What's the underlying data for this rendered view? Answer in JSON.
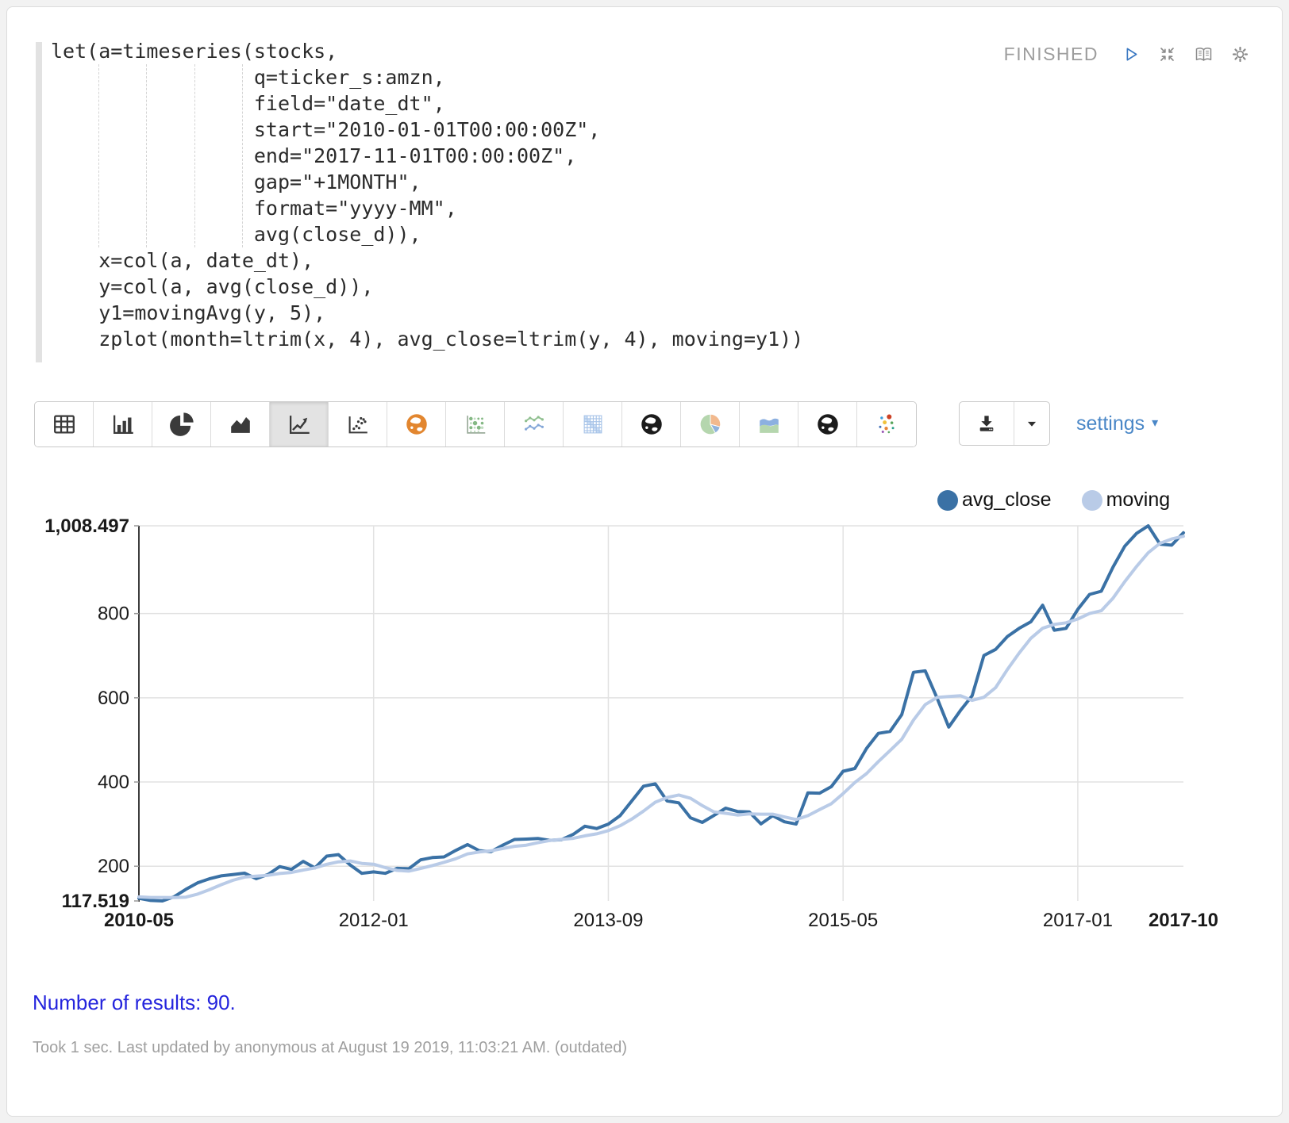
{
  "paragraph": {
    "status": "FINISHED",
    "status_icons": [
      "play-icon",
      "collapse-icon",
      "book-icon",
      "gear-icon"
    ],
    "code_lines": [
      "let(a=timeseries(stocks,",
      "                 q=ticker_s:amzn,",
      "                 field=\"date_dt\",",
      "                 start=\"2010-01-01T00:00:00Z\",",
      "                 end=\"2017-11-01T00:00:00Z\",",
      "                 gap=\"+1MONTH\",",
      "                 format=\"yyyy-MM\",",
      "                 avg(close_d)),",
      "    x=col(a, date_dt),",
      "    y=col(a, avg(close_d)),",
      "    y1=movingAvg(y, 5),",
      "    zplot(month=ltrim(x, 4), avg_close=ltrim(y, 4), moving=y1))"
    ]
  },
  "toolbar": {
    "chart_types": [
      {
        "name": "table",
        "icon": "table-icon",
        "selected": false
      },
      {
        "name": "bar-chart",
        "icon": "bar-chart-icon",
        "selected": false
      },
      {
        "name": "pie-chart",
        "icon": "pie-chart-icon",
        "selected": false
      },
      {
        "name": "area-chart",
        "icon": "area-chart-icon",
        "selected": false
      },
      {
        "name": "line-chart",
        "icon": "line-chart-icon",
        "selected": true
      },
      {
        "name": "scatter-chart",
        "icon": "scatter-chart-icon",
        "selected": false
      },
      {
        "name": "map-orange",
        "icon": "globe-orange-icon",
        "selected": false
      },
      {
        "name": "bubble-matrix",
        "icon": "bubble-matrix-icon",
        "selected": false
      },
      {
        "name": "multi-line",
        "icon": "multi-line-icon",
        "selected": false
      },
      {
        "name": "heatmap",
        "icon": "heatmap-icon",
        "selected": false
      },
      {
        "name": "globe-dark",
        "icon": "globe-dark-icon",
        "selected": false
      },
      {
        "name": "pie-pastel",
        "icon": "pie-pastel-icon",
        "selected": false
      },
      {
        "name": "area-pastel",
        "icon": "area-pastel-icon",
        "selected": false
      },
      {
        "name": "globe-dark-2",
        "icon": "globe-dark-icon",
        "selected": false
      },
      {
        "name": "scatter-color",
        "icon": "scatter-color-icon",
        "selected": false
      }
    ],
    "download_buttons": [
      {
        "name": "download",
        "icon": "download-icon"
      },
      {
        "name": "download-options",
        "icon": "caret-down-icon"
      }
    ],
    "settings_label": "settings",
    "settings_caret": "▾"
  },
  "chart_data": {
    "type": "line",
    "x_field": "month",
    "ylim": [
      117.519,
      1008.497
    ],
    "legend_position": "top-right",
    "grid": true,
    "y_ticks": [
      {
        "label": "1,008.497",
        "value": 1008.497,
        "bold": true,
        "grid": true
      },
      {
        "label": "800",
        "value": 800,
        "bold": false,
        "grid": true
      },
      {
        "label": "600",
        "value": 600,
        "bold": false,
        "grid": true
      },
      {
        "label": "400",
        "value": 400,
        "bold": false,
        "grid": true
      },
      {
        "label": "200",
        "value": 200,
        "bold": false,
        "grid": true
      },
      {
        "label": "117.519",
        "value": 117.519,
        "bold": true,
        "grid": false
      }
    ],
    "x_ticks": [
      {
        "label": "2010-05",
        "index": 0,
        "bold": true,
        "grid": false
      },
      {
        "label": "2012-01",
        "index": 20,
        "bold": false,
        "grid": true
      },
      {
        "label": "2013-09",
        "index": 40,
        "bold": false,
        "grid": true
      },
      {
        "label": "2015-05",
        "index": 60,
        "bold": false,
        "grid": true
      },
      {
        "label": "2017-01",
        "index": 80,
        "bold": false,
        "grid": true
      },
      {
        "label": "2017-10",
        "index": 89,
        "bold": true,
        "grid": false
      }
    ],
    "categories": [
      "2010-05",
      "2010-06",
      "2010-07",
      "2010-08",
      "2010-09",
      "2010-10",
      "2010-11",
      "2010-12",
      "2011-01",
      "2011-02",
      "2011-03",
      "2011-04",
      "2011-05",
      "2011-06",
      "2011-07",
      "2011-08",
      "2011-09",
      "2011-10",
      "2011-11",
      "2011-12",
      "2012-01",
      "2012-02",
      "2012-03",
      "2012-04",
      "2012-05",
      "2012-06",
      "2012-07",
      "2012-08",
      "2012-09",
      "2012-10",
      "2012-11",
      "2012-12",
      "2013-01",
      "2013-02",
      "2013-03",
      "2013-04",
      "2013-05",
      "2013-06",
      "2013-07",
      "2013-08",
      "2013-09",
      "2013-10",
      "2013-11",
      "2013-12",
      "2014-01",
      "2014-02",
      "2014-03",
      "2014-04",
      "2014-05",
      "2014-06",
      "2014-07",
      "2014-08",
      "2014-09",
      "2014-10",
      "2014-11",
      "2014-12",
      "2015-01",
      "2015-02",
      "2015-03",
      "2015-04",
      "2015-05",
      "2015-06",
      "2015-07",
      "2015-08",
      "2015-09",
      "2015-10",
      "2015-11",
      "2015-12",
      "2016-01",
      "2016-02",
      "2016-03",
      "2016-04",
      "2016-05",
      "2016-06",
      "2016-07",
      "2016-08",
      "2016-09",
      "2016-10",
      "2016-11",
      "2016-12",
      "2017-01",
      "2017-02",
      "2017-03",
      "2017-04",
      "2017-05",
      "2017-06",
      "2017-07",
      "2017-08",
      "2017-09",
      "2017-10"
    ],
    "series": [
      {
        "name": "avg_close",
        "color": "#3a71a5",
        "values": [
          124.0,
          118.6,
          117.519,
          127.5,
          145.0,
          160.5,
          170.0,
          177.0,
          180.0,
          183.5,
          170.5,
          180.5,
          199.0,
          192.5,
          211.5,
          196.0,
          224.0,
          227.5,
          203.0,
          183.0,
          186.5,
          183.0,
          195.0,
          194.0,
          215.0,
          220.5,
          222.0,
          237.5,
          251.5,
          237.0,
          234.5,
          250.0,
          263.5,
          264.5,
          266.0,
          261.5,
          263.0,
          275.5,
          295.0,
          289.5,
          300.0,
          320.0,
          355.0,
          390.0,
          395.5,
          355.0,
          350.5,
          315.0,
          304.0,
          320.5,
          338.0,
          330.0,
          329.0,
          300.5,
          320.0,
          305.5,
          300.0,
          374.0,
          373.5,
          389.0,
          425.5,
          432.0,
          480.0,
          515.5,
          520.0,
          560.0,
          660.5,
          664.0,
          600.0,
          530.5,
          570.0,
          605.0,
          700.5,
          715.0,
          745.5,
          765.0,
          780.5,
          820.0,
          760.5,
          765.0,
          810.0,
          845.5,
          853.0,
          910.5,
          960.0,
          990.5,
          1008.497,
          965.0,
          962.5,
          992.0
        ]
      },
      {
        "name": "moving",
        "color": "#b9cbe7",
        "values": [
          127.2,
          125.9,
          125.8,
          125.5,
          126.5,
          133.8,
          144.1,
          156.0,
          166.5,
          174.2,
          176.2,
          178.3,
          182.7,
          185.2,
          190.8,
          195.9,
          204.6,
          210.3,
          212.4,
          206.7,
          204.8,
          196.6,
          190.1,
          188.3,
          194.7,
          201.5,
          209.3,
          217.8,
          229.3,
          233.7,
          236.5,
          242.1,
          247.3,
          249.9,
          255.7,
          261.1,
          263.7,
          266.1,
          272.2,
          276.9,
          284.6,
          296.0,
          311.9,
          330.9,
          352.1,
          363.1,
          369.2,
          361.2,
          344.0,
          329.0,
          325.6,
          321.5,
          324.3,
          323.6,
          323.5,
          317.0,
          311.0,
          320.0,
          334.6,
          348.4,
          372.4,
          398.8,
          420.0,
          448.4,
          474.6,
          501.5,
          547.2,
          584.0,
          600.9,
          603.0,
          605.0,
          593.9,
          601.2,
          624.2,
          667.2,
          706.2,
          741.3,
          765.2,
          774.3,
          778.2,
          787.2,
          800.2,
          806.8,
          836.8,
          875.8,
          911.9,
          944.5,
          966.9,
          977.3,
          983.7
        ]
      }
    ]
  },
  "results": {
    "text": "Number of results: 90."
  },
  "footer": {
    "text": "Took 1 sec. Last updated by anonymous at August 19 2019, 11:03:21 AM. (outdated)"
  },
  "colors": {
    "accent_blue": "#4a87c7",
    "results_blue": "#2424dd",
    "status_gray": "#9d9d9d",
    "series_dark": "#3a71a5",
    "series_light": "#b9cbe7"
  }
}
